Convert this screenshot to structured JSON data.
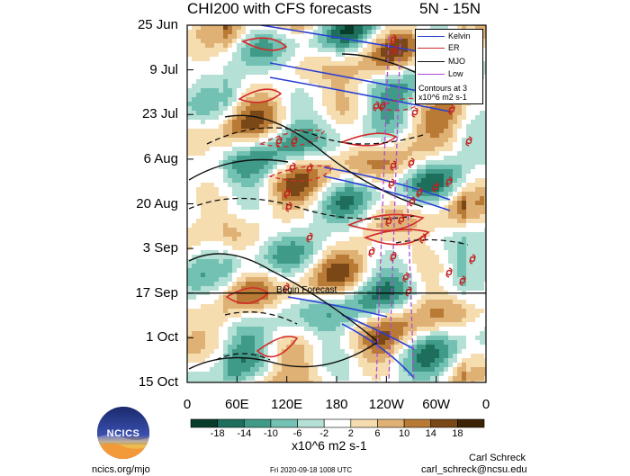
{
  "header": {
    "title": "CHI200 with CFS forecasts",
    "region": "5N - 15N"
  },
  "chart_data": {
    "type": "heatmap",
    "title": "CHI200 with CFS forecasts",
    "y_tick_labels": [
      "25 Jun",
      "9 Jul",
      "23 Jul",
      "6 Aug",
      "20 Aug",
      "3 Sep",
      "17 Sep",
      "1 Oct",
      "15 Oct"
    ],
    "x_tick_labels": [
      "0",
      "60E",
      "120E",
      "180",
      "120W",
      "60W",
      "0"
    ],
    "x_values_deg_east": [
      0,
      60,
      120,
      180,
      240,
      300,
      360
    ],
    "y_dates": [
      "2020-06-25",
      "2020-07-09",
      "2020-07-23",
      "2020-08-06",
      "2020-08-20",
      "2020-09-03",
      "2020-09-17",
      "2020-10-01",
      "2020-10-15"
    ],
    "forecast_start_date": "2020-09-17",
    "forecast_label": "Begin Forecast",
    "legend": {
      "entries": [
        {
          "name": "Kelvin",
          "color": "#2a3fd6",
          "style": "solid"
        },
        {
          "name": "ER",
          "color": "#d42a2a",
          "style": "solid"
        },
        {
          "name": "MJO",
          "color": "#111111",
          "style": "solid"
        },
        {
          "name": "Low",
          "color": "#b04ad6",
          "style": "solid"
        }
      ],
      "note": "Contours at 3 x10^6 m2 s-1",
      "placement": "top-right"
    },
    "colorbar": {
      "labels": [
        "-18",
        "-14",
        "-10",
        "-6",
        "-2",
        "2",
        "6",
        "10",
        "14",
        "18"
      ],
      "colors": [
        "#083d2c",
        "#1d6e5b",
        "#3f9a87",
        "#73c1b2",
        "#b4e0d6",
        "#ffffff",
        "#f5ddb0",
        "#dfb174",
        "#b97a35",
        "#7a4716",
        "#3d2306"
      ],
      "units": "x10^6 m2 s-1"
    }
  },
  "footer": {
    "left": "ncics.org/mjo",
    "date": "Fri 2020-09-18 1008 UTC",
    "author": "Carl Schreck",
    "email": "carl_schreck@ncsu.edu",
    "logo_text": "NCICS"
  }
}
